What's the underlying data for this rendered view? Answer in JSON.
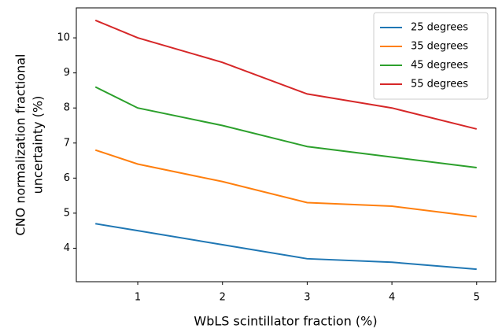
{
  "chart_data": {
    "type": "line",
    "xlabel": "WbLS scintillator fraction (%)",
    "ylabel": [
      "CNO normalization fractional",
      "uncertainty (%)"
    ],
    "x": [
      0.5,
      1,
      2,
      3,
      4,
      5
    ],
    "series": [
      {
        "name": "25 degrees",
        "color": "#1f77b4",
        "values": [
          4.7,
          4.5,
          4.1,
          3.7,
          3.6,
          3.4
        ]
      },
      {
        "name": "35 degrees",
        "color": "#ff7f0e",
        "values": [
          6.8,
          6.4,
          5.9,
          5.3,
          5.2,
          4.9
        ]
      },
      {
        "name": "45 degrees",
        "color": "#2ca02c",
        "values": [
          8.6,
          8.0,
          7.5,
          6.9,
          6.6,
          6.3
        ]
      },
      {
        "name": "55 degrees",
        "color": "#d62728",
        "values": [
          10.5,
          10.0,
          9.3,
          8.4,
          8.0,
          7.4
        ]
      }
    ],
    "xlim": [
      0.275,
      5.225
    ],
    "xticks": [
      1,
      2,
      3,
      4,
      5
    ],
    "ylim": [
      3.045,
      10.855
    ],
    "yticks": [
      4,
      5,
      6,
      7,
      8,
      9,
      10
    ],
    "grid": false,
    "legend": "upper-right"
  }
}
